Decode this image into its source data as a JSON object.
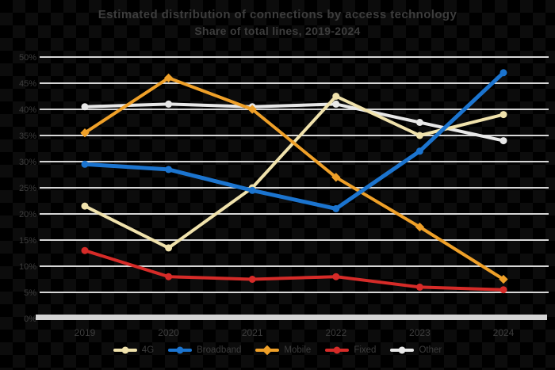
{
  "title": {
    "line1": "Estimated distribution of connections by access technology",
    "line2": "Share of total lines, 2019-2024"
  },
  "colors": {
    "background": "#000000",
    "checker_alt": "#0c0c0c",
    "gridline": "#d6d6d6",
    "axis_bar": "#d4d4d4",
    "text_muted": "#3d3d3d"
  },
  "chart_data": {
    "type": "line",
    "x": [
      "2019",
      "2020",
      "2021",
      "2022",
      "2023",
      "2024"
    ],
    "series": [
      {
        "name": "4G",
        "color": "#f0e2ac",
        "marker": "circle",
        "z": 1,
        "values": [
          21.5,
          13.5,
          25.0,
          42.5,
          35.0,
          39.0
        ]
      },
      {
        "name": "Broadband",
        "color": "#1b74cf",
        "marker": "circle",
        "z": 4,
        "values": [
          29.5,
          28.5,
          24.5,
          21.0,
          32.0,
          47.0
        ]
      },
      {
        "name": "Mobile",
        "color": "#efa028",
        "marker": "diamond",
        "z": 2,
        "values": [
          35.5,
          46.0,
          40.0,
          27.0,
          17.5,
          7.5
        ]
      },
      {
        "name": "Fixed",
        "color": "#d62b28",
        "marker": "circle",
        "z": 3,
        "values": [
          13.0,
          8.0,
          7.5,
          8.0,
          6.0,
          5.5
        ]
      },
      {
        "name": "Other",
        "color": "#e8e8e8",
        "marker": "circle",
        "z": 0,
        "values": [
          40.5,
          41.0,
          40.5,
          41.0,
          37.5,
          34.0
        ]
      }
    ],
    "title": "Estimated distribution of connections by access technology — Share of total lines, 2019-2024",
    "xlabel": "",
    "ylabel": "",
    "ylim": [
      0,
      50
    ],
    "ytick_step": 5,
    "ytick_labels": [
      "0%",
      "5%",
      "10%",
      "15%",
      "20%",
      "25%",
      "30%",
      "35%",
      "40%",
      "45%",
      "50%"
    ],
    "grid": true,
    "legend_position": "bottom"
  }
}
